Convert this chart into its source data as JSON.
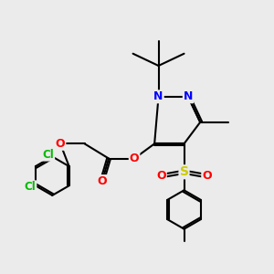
{
  "background_color": "#ebebeb",
  "bond_color": "#000000",
  "bond_width": 1.5,
  "atom_colors": {
    "N": "#0000ff",
    "O": "#ff0000",
    "S": "#cccc00",
    "Cl": "#00bb00",
    "C": "#000000"
  }
}
